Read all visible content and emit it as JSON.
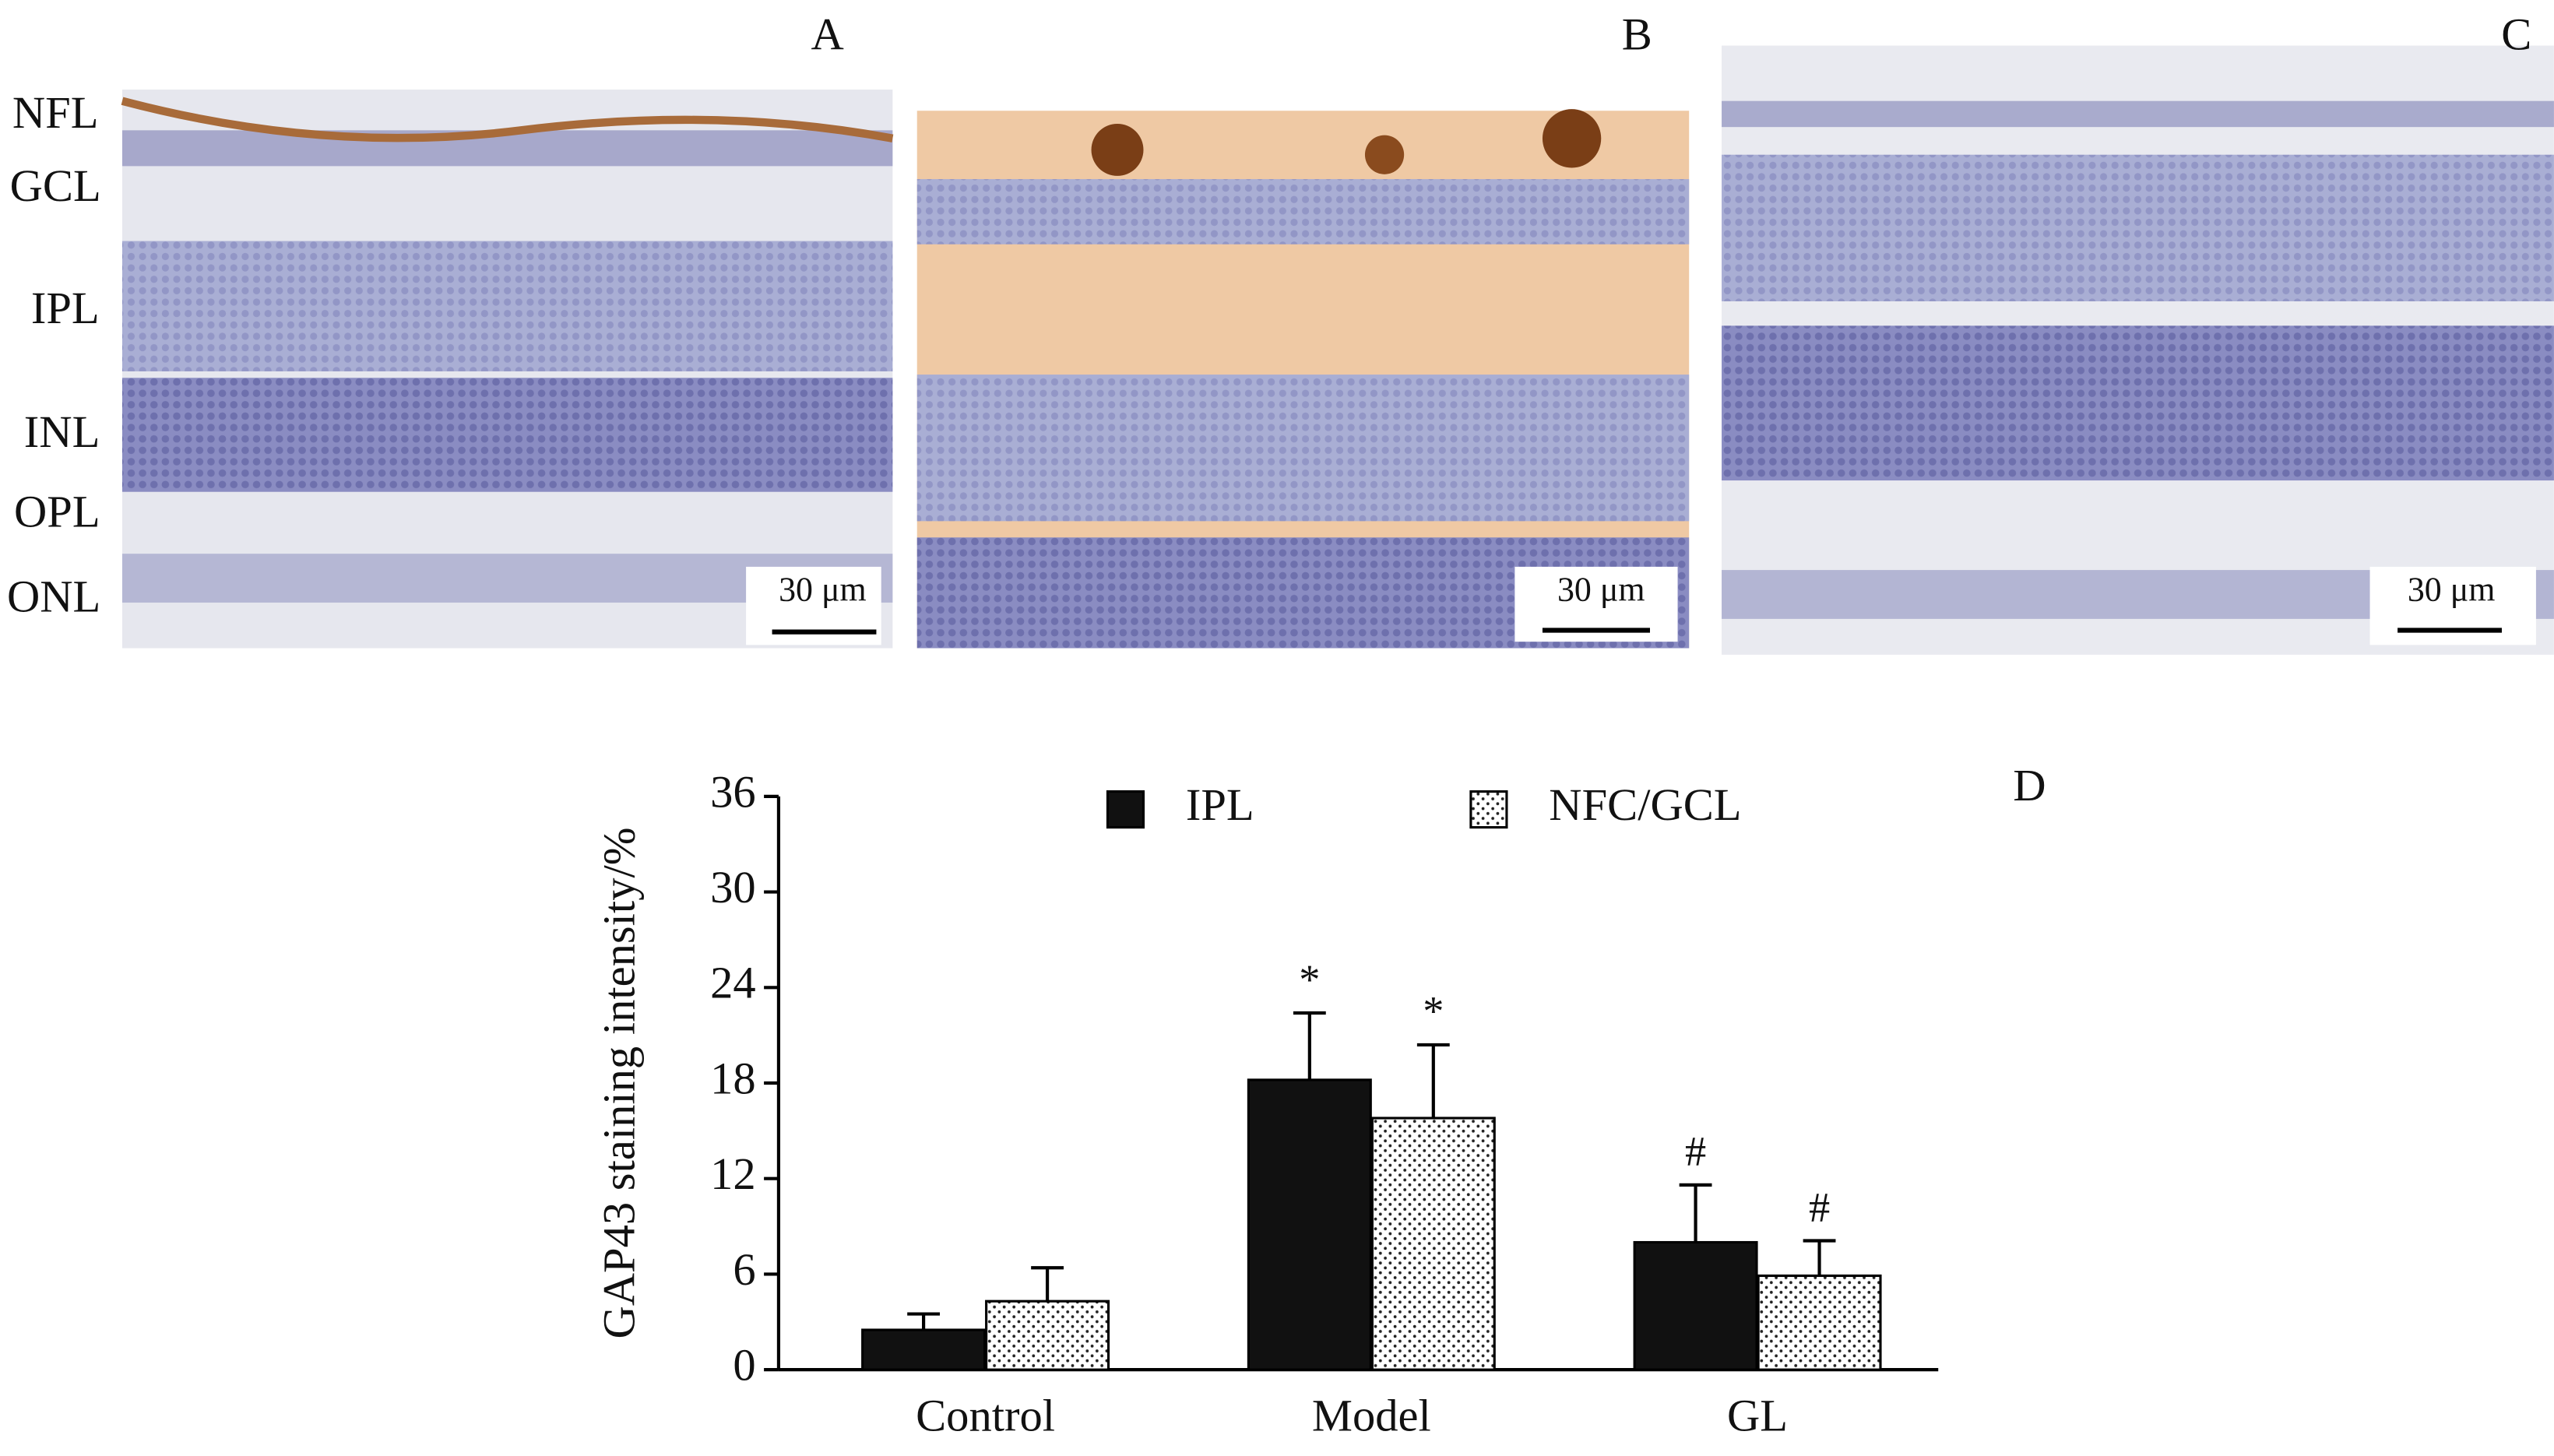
{
  "panels": {
    "labels": [
      "A",
      "B",
      "C",
      "D"
    ],
    "layers": [
      "NFL",
      "GCL",
      "IPL",
      "INL",
      "OPL",
      "ONL"
    ],
    "scale_bars": [
      "30 μm",
      "30 μm",
      "30 μm"
    ]
  },
  "chart_data": {
    "type": "bar",
    "y_label": "GAP43 staining intensity/%",
    "categories": [
      "Control",
      "Model",
      "GL"
    ],
    "series": [
      {
        "name": "IPL",
        "color": "#111111",
        "values": [
          2.5,
          18.2,
          8.0
        ],
        "errors": [
          1.0,
          4.2,
          3.6
        ],
        "annotations": [
          null,
          "*",
          "#"
        ]
      },
      {
        "name": "NFC/GCL",
        "color": "#ffffff",
        "pattern": "dots",
        "values": [
          4.3,
          15.8,
          5.9
        ],
        "errors": [
          2.1,
          4.6,
          2.2
        ],
        "annotations": [
          null,
          "*",
          "#"
        ]
      }
    ],
    "ylim": [
      0,
      36
    ],
    "yticks": [
      0,
      6,
      12,
      18,
      24,
      30,
      36
    ],
    "grid": false,
    "legend": "top"
  }
}
